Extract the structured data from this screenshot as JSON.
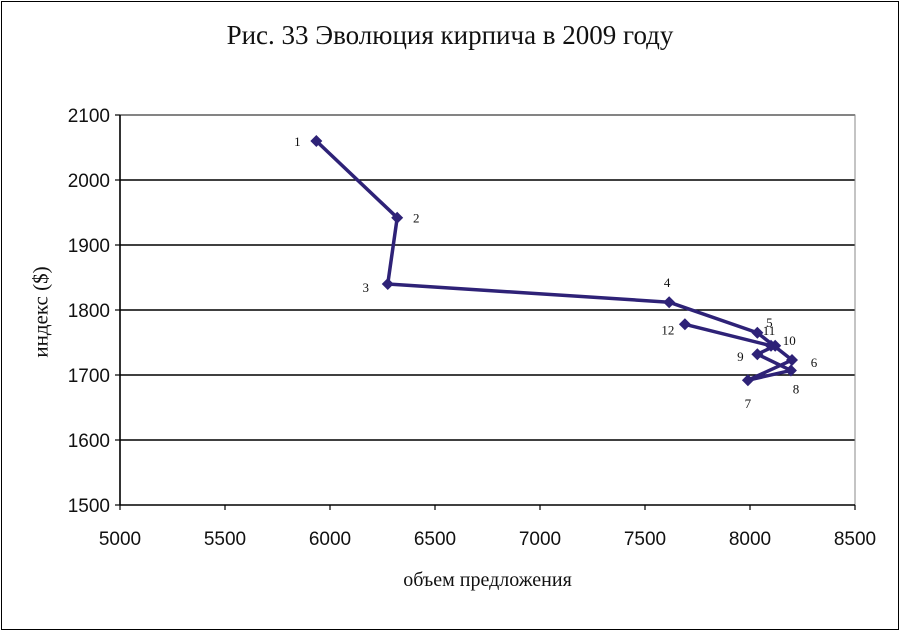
{
  "chart_data": {
    "type": "line",
    "title": "Рис. 33 Эволюция кирпича в 2009 году",
    "xlabel": "объем предложения",
    "ylabel": "индекс ($)",
    "xlim": [
      5000,
      8500
    ],
    "ylim": [
      1500,
      2100
    ],
    "x_ticks": [
      5000,
      5500,
      6000,
      6500,
      7000,
      7500,
      8000,
      8500
    ],
    "y_ticks": [
      1500,
      1600,
      1700,
      1800,
      1900,
      2000,
      2100
    ],
    "grid": "horizontal",
    "series_color": "#2e2277",
    "points": [
      {
        "label": "1",
        "x": 5935,
        "y": 2060
      },
      {
        "label": "2",
        "x": 6320,
        "y": 1942
      },
      {
        "label": "3",
        "x": 6275,
        "y": 1840
      },
      {
        "label": "4",
        "x": 7615,
        "y": 1812
      },
      {
        "label": "5",
        "x": 8035,
        "y": 1765
      },
      {
        "label": "6",
        "x": 8200,
        "y": 1723
      },
      {
        "label": "7",
        "x": 7990,
        "y": 1692
      },
      {
        "label": "8",
        "x": 8195,
        "y": 1707
      },
      {
        "label": "9",
        "x": 8035,
        "y": 1732
      },
      {
        "label": "10",
        "x": 8120,
        "y": 1745
      },
      {
        "label": "11",
        "x": 8100,
        "y": 1745
      },
      {
        "label": "12",
        "x": 7690,
        "y": 1778
      }
    ]
  }
}
